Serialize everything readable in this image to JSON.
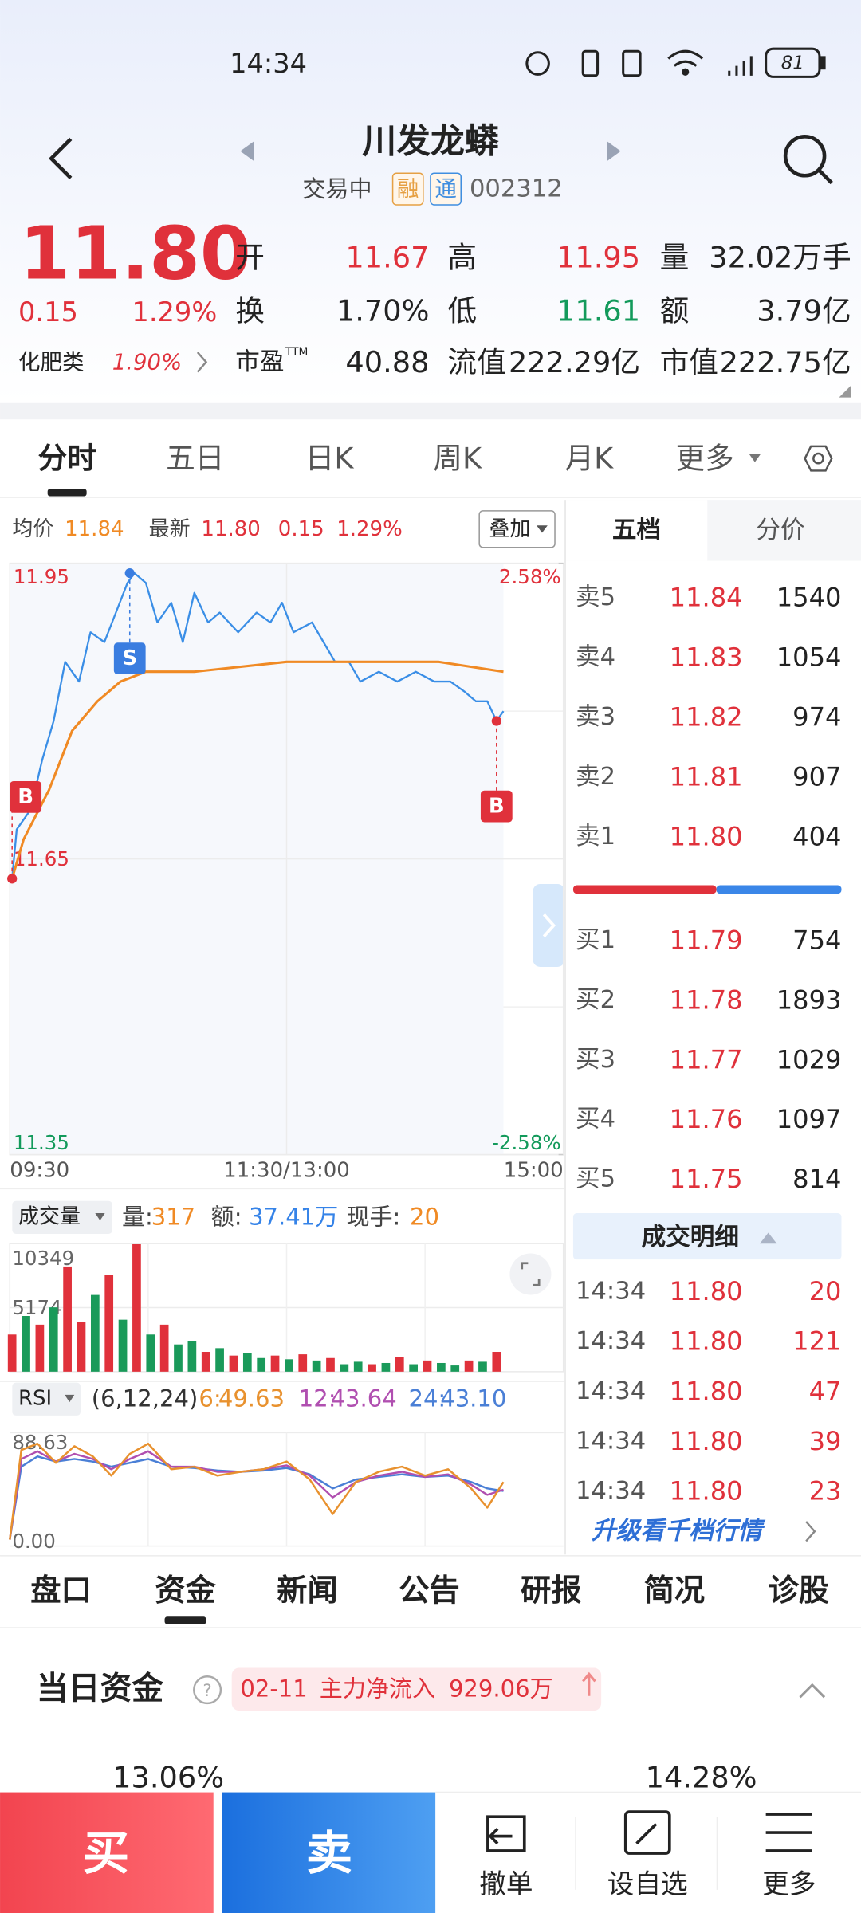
{
  "status_bar": {
    "time": "14:34",
    "battery": "81"
  },
  "header": {
    "title": "川发龙蟒",
    "status": "交易中",
    "badges": [
      "融",
      "通"
    ],
    "code": "002312"
  },
  "quote": {
    "price": "11.80",
    "change": "0.15",
    "change_pct": "1.29%",
    "sector": "化肥类",
    "sector_pct": "1.90%",
    "grid": [
      [
        {
          "label": "开",
          "value": "11.67",
          "color": "#e0313b"
        },
        {
          "label": "高",
          "value": "11.95",
          "color": "#e0313b"
        },
        {
          "label": "量",
          "value": "32.02万手"
        }
      ],
      [
        {
          "label": "换",
          "value": "1.70%"
        },
        {
          "label": "低",
          "value": "11.61",
          "color": "#139a5b"
        },
        {
          "label": "额",
          "value": "3.79亿"
        }
      ],
      [
        {
          "label": "市盈",
          "sup": "TTM",
          "value": "40.88"
        },
        {
          "label": "流值",
          "value": "222.29亿"
        },
        {
          "label": "市值",
          "value": "222.75亿"
        }
      ]
    ]
  },
  "chart_tabs": {
    "items": [
      "分时",
      "五日",
      "日K",
      "周K",
      "月K",
      "更多"
    ],
    "active": 0
  },
  "chart_info": {
    "avg_label": "均价",
    "avg": "11.84",
    "latest_label": "最新",
    "latest": "11.80",
    "change": "0.15",
    "change_pct": "1.29%",
    "overlay": "叠加"
  },
  "intraday": {
    "xlim": [
      0,
      240
    ],
    "xticks": [
      {
        "value": 0,
        "label": "09:30"
      },
      {
        "value": 120,
        "label": "11:30/13:00"
      },
      {
        "value": 240,
        "label": "15:00"
      }
    ],
    "ylim": [
      11.35,
      11.95
    ],
    "yticks": [
      11.95,
      11.65,
      11.35
    ],
    "y2lim": [
      -2.58,
      2.58
    ],
    "y2ticks": [
      {
        "value": 2.58,
        "label": "2.58%"
      },
      {
        "value": -2.58,
        "label": "-2.58%"
      }
    ],
    "series": [
      {
        "color": "#3a8ee6",
        "minutes": [
          1,
          3,
          9,
          14,
          19,
          24,
          30,
          35,
          41,
          46,
          51,
          54,
          59,
          64,
          70,
          75,
          80,
          86,
          91,
          99,
          107,
          113,
          118,
          123,
          131,
          136,
          141,
          147,
          152,
          160,
          168,
          176,
          184,
          191,
          197,
          202,
          207,
          211,
          214
        ],
        "values": [
          11.63,
          11.68,
          11.7,
          11.75,
          11.79,
          11.85,
          11.83,
          11.88,
          11.87,
          11.9,
          11.93,
          11.94,
          11.93,
          11.89,
          11.91,
          11.87,
          11.92,
          11.89,
          11.9,
          11.88,
          11.9,
          11.89,
          11.91,
          11.88,
          11.89,
          11.87,
          11.85,
          11.85,
          11.83,
          11.84,
          11.83,
          11.84,
          11.83,
          11.83,
          11.82,
          11.81,
          11.81,
          11.79,
          11.8
        ]
      },
      {
        "color": "#f08a24",
        "minutes": [
          1,
          6,
          17,
          27,
          38,
          48,
          59,
          80,
          120,
          155,
          186,
          214
        ],
        "values": [
          11.63,
          11.67,
          11.72,
          11.78,
          11.81,
          11.83,
          11.84,
          11.84,
          11.85,
          11.85,
          11.85,
          11.84
        ]
      }
    ],
    "markers": [
      {
        "label": "B",
        "color": "#e0313b",
        "minute": 1,
        "price": 11.63
      },
      {
        "label": "S",
        "color": "#3a7de0",
        "minute": 52,
        "price": 11.94
      },
      {
        "label": "B",
        "color": "#e0313b",
        "minute": 211,
        "price": 11.79
      }
    ]
  },
  "volume_chart": {
    "label": "成交量",
    "fields": [
      {
        "label": "量:",
        "value": "317",
        "color": "#f08a24"
      },
      {
        "label": "额:",
        "value": "37.41万",
        "color": "#3583e8"
      },
      {
        "label": "现手:",
        "value": "20",
        "color": "#f08a24"
      }
    ],
    "ylim": [
      0,
      10349
    ],
    "yticks": [
      10349,
      5174
    ],
    "minutes": [
      1,
      7,
      13,
      19,
      25,
      31,
      37,
      43,
      49,
      55,
      61,
      67,
      73,
      79,
      85,
      91,
      97,
      103,
      109,
      115,
      121,
      127,
      133,
      139,
      145,
      151,
      157,
      163,
      169,
      175,
      181,
      187,
      193,
      199,
      205,
      211
    ],
    "values": [
      3000,
      4500,
      3800,
      5200,
      8500,
      4000,
      6200,
      7800,
      4200,
      10300,
      3000,
      3800,
      2200,
      2500,
      1600,
      1900,
      1300,
      1500,
      1100,
      1300,
      1000,
      1400,
      900,
      1100,
      600,
      800,
      600,
      700,
      1200,
      600,
      900,
      700,
      500,
      900,
      800,
      1600
    ],
    "colors": [
      "#e0313b",
      "#1a9a5a",
      "#e0313b",
      "#1a9a5a",
      "#e0313b",
      "#e0313b",
      "#1a9a5a",
      "#e0313b",
      "#1a9a5a",
      "#e0313b",
      "#1a9a5a",
      "#e0313b",
      "#1a9a5a",
      "#1a9a5a",
      "#e0313b",
      "#1a9a5a",
      "#e0313b",
      "#1a9a5a",
      "#1a9a5a",
      "#e0313b",
      "#1a9a5a",
      "#e0313b",
      "#1a9a5a",
      "#e0313b",
      "#1a9a5a",
      "#1a9a5a",
      "#e0313b",
      "#1a9a5a",
      "#e0313b",
      "#1a9a5a",
      "#e0313b",
      "#1a9a5a",
      "#1a9a5a",
      "#e0313b",
      "#1a9a5a",
      "#e0313b"
    ]
  },
  "rsi_chart": {
    "label": "RSI",
    "params": "(6,12,24)",
    "ylim": [
      0,
      88.63
    ],
    "yticks": [
      88.63,
      {
        "value": 0,
        "label": "0.00"
      }
    ],
    "minutes": [
      0,
      5,
      12,
      20,
      28,
      36,
      44,
      52,
      60,
      70,
      80,
      90,
      100,
      110,
      120,
      130,
      140,
      150,
      160,
      170,
      180,
      190,
      200,
      207,
      214
    ],
    "series": [
      {
        "label": "6:",
        "value": "49.63",
        "color": "#e8912e",
        "values": [
          5,
          75,
          80,
          65,
          78,
          70,
          55,
          72,
          80,
          60,
          62,
          55,
          58,
          60,
          66,
          52,
          25,
          50,
          58,
          62,
          55,
          60,
          45,
          30,
          50
        ]
      },
      {
        "label": "12:",
        "value": "43.64",
        "color": "#b04fb0",
        "values": [
          5,
          68,
          74,
          66,
          72,
          68,
          60,
          68,
          74,
          62,
          62,
          58,
          58,
          60,
          63,
          55,
          38,
          50,
          55,
          58,
          54,
          56,
          48,
          40,
          44
        ]
      },
      {
        "label": "24:",
        "value": "43.10",
        "color": "#4a7fd6",
        "values": [
          5,
          62,
          70,
          66,
          68,
          66,
          62,
          65,
          68,
          62,
          61,
          59,
          58,
          59,
          61,
          56,
          45,
          52,
          54,
          56,
          54,
          55,
          50,
          45,
          43
        ]
      }
    ]
  },
  "order_book": {
    "tabs": [
      "五档",
      "分价"
    ],
    "sell": [
      {
        "label": "卖5",
        "price": "11.84",
        "volume": "1540"
      },
      {
        "label": "卖4",
        "price": "11.83",
        "volume": "1054"
      },
      {
        "label": "卖3",
        "price": "11.82",
        "volume": "974"
      },
      {
        "label": "卖2",
        "price": "11.81",
        "volume": "907"
      },
      {
        "label": "卖1",
        "price": "11.80",
        "volume": "404"
      }
    ],
    "buy": [
      {
        "label": "买1",
        "price": "11.79",
        "volume": "754"
      },
      {
        "label": "买2",
        "price": "11.78",
        "volume": "1893"
      },
      {
        "label": "买3",
        "price": "11.77",
        "volume": "1029"
      },
      {
        "label": "买4",
        "price": "11.76",
        "volume": "1097"
      },
      {
        "label": "买5",
        "price": "11.75",
        "volume": "814"
      }
    ]
  },
  "trade_detail": {
    "title": "成交明细",
    "rows": [
      {
        "time": "14:34",
        "price": "11.80",
        "volume": "20"
      },
      {
        "time": "14:34",
        "price": "11.80",
        "volume": "121"
      },
      {
        "time": "14:34",
        "price": "11.80",
        "volume": "47"
      },
      {
        "time": "14:34",
        "price": "11.80",
        "volume": "39"
      },
      {
        "time": "14:34",
        "price": "11.80",
        "volume": "23"
      }
    ],
    "more": "升级看千档行情"
  },
  "bottom_tabs": {
    "items": [
      "盘口",
      "资金",
      "新闻",
      "公告",
      "研报",
      "简况",
      "诊股"
    ],
    "active": 1
  },
  "funds": {
    "title": "当日资金",
    "date": "02-11",
    "flow_label": "主力净流入",
    "flow_amount": "929.06万",
    "left_pct": "13.06%",
    "right_pct": "14.28%"
  },
  "actions": {
    "buy": "买",
    "sell": "卖",
    "items": [
      "撤单",
      "设自选",
      "更多"
    ]
  }
}
